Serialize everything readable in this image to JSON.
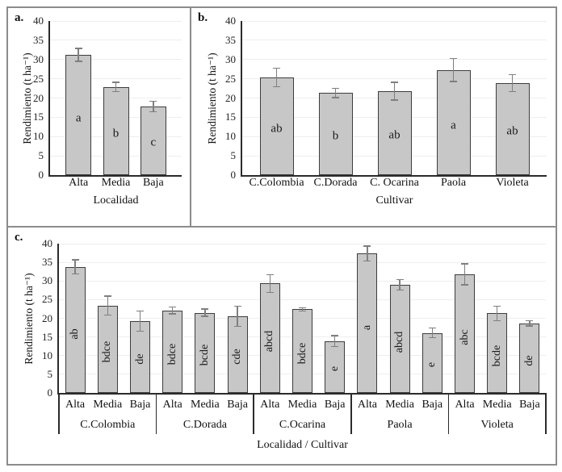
{
  "figure": {
    "style": {
      "bar_fill": "#c7c7c7",
      "bar_border": "#3d3d3d",
      "error_color": "#7f7f7f",
      "grid_color": "#eeeeee",
      "axis_color": "#2b2b2b",
      "frame_color": "#8c8c8c",
      "text_color": "#111111"
    }
  },
  "chart_data": [
    {
      "panel_label": "a.",
      "type": "bar",
      "ylabel": "Rendimiento (t ha⁻¹)",
      "xlabel": "Localidad",
      "ylim": [
        0,
        40
      ],
      "ytick_step": 5,
      "grid": true,
      "legend": "none",
      "categories": [
        "Alta",
        "Media",
        "Baja"
      ],
      "values": [
        31.2,
        22.9,
        17.8
      ],
      "errors": [
        1.7,
        1.2,
        1.4
      ],
      "sig_letters": [
        "a",
        "b",
        "c"
      ]
    },
    {
      "panel_label": "b.",
      "type": "bar",
      "ylabel": "Rendimiento (t ha⁻¹)",
      "xlabel": "Cultivar",
      "ylim": [
        0,
        40
      ],
      "ytick_step": 5,
      "grid": true,
      "legend": "none",
      "categories": [
        "C.Colombia",
        "C.Dorada",
        "C. Ocarina",
        "Paola",
        "Violeta"
      ],
      "values": [
        25.3,
        21.3,
        21.8,
        27.3,
        23.9
      ],
      "errors": [
        2.4,
        1.2,
        2.3,
        3.0,
        2.2
      ],
      "sig_letters": [
        "ab",
        "b",
        "ab",
        "a",
        "ab"
      ]
    },
    {
      "panel_label": "c.",
      "type": "bar",
      "ylabel": "Rendimiento (t ha⁻¹)",
      "xlabel": "Localidad / Cultivar",
      "ylim": [
        0,
        40
      ],
      "ytick_step": 5,
      "grid": true,
      "legend": "none",
      "letters_rotated": true,
      "groups": [
        {
          "label": "C.Colombia",
          "categories": [
            "Alta",
            "Media",
            "Baja"
          ],
          "values": [
            33.8,
            23.4,
            19.2
          ],
          "errors": [
            1.9,
            2.5,
            2.7
          ],
          "sig_letters": [
            "ab",
            "bdce",
            "de"
          ]
        },
        {
          "label": "C.Dorada",
          "categories": [
            "Alta",
            "Media",
            "Baja"
          ],
          "values": [
            22.1,
            21.5,
            20.5
          ],
          "errors": [
            0.9,
            1.0,
            2.7
          ],
          "sig_letters": [
            "bdce",
            "bcde",
            "cde"
          ]
        },
        {
          "label": "C.Ocarina",
          "categories": [
            "Alta",
            "Media",
            "Baja"
          ],
          "values": [
            29.3,
            22.4,
            13.9
          ],
          "errors": [
            2.4,
            0.4,
            1.5
          ],
          "sig_letters": [
            "abcd",
            "bdce",
            "e"
          ]
        },
        {
          "label": "Paola",
          "categories": [
            "Alta",
            "Media",
            "Baja"
          ],
          "values": [
            37.3,
            29.0,
            16.1
          ],
          "errors": [
            2.0,
            1.4,
            1.3
          ],
          "sig_letters": [
            "a",
            "abcd",
            "e"
          ]
        },
        {
          "label": "Violeta",
          "categories": [
            "Alta",
            "Media",
            "Baja"
          ],
          "values": [
            31.8,
            21.3,
            18.6
          ],
          "errors": [
            2.8,
            1.9,
            0.7
          ],
          "sig_letters": [
            "abc",
            "bcde",
            "de"
          ]
        }
      ]
    }
  ]
}
